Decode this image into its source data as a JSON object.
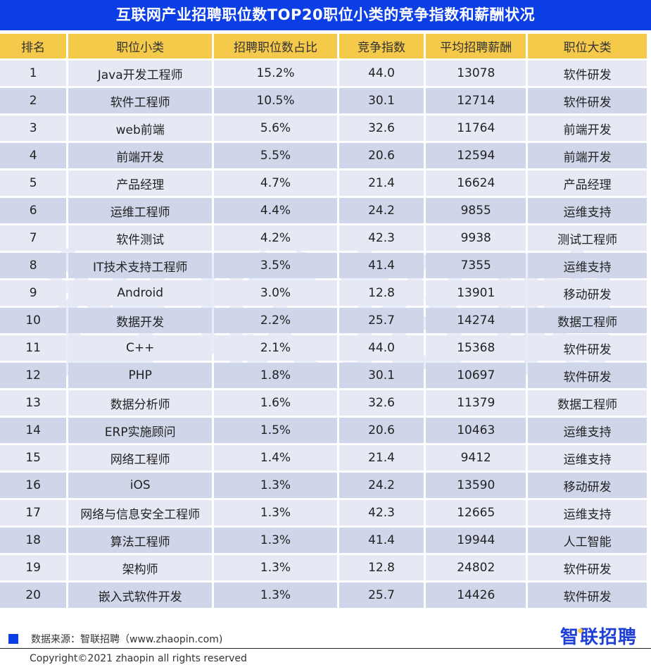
{
  "title": "互联网产业招聘职位数TOP20职位小类的竞争指数和薪酬状况",
  "watermark": "智联招聘",
  "colors": {
    "title_bg": "#0c3ee6",
    "header_bg": "#f5c94a",
    "row_light": "#e6e8f3",
    "row_dark": "#cfd6ea"
  },
  "table": {
    "headers": [
      "排名",
      "职位小类",
      "招聘职位数占比",
      "竞争指数",
      "平均招聘薪酬",
      "职位大类"
    ],
    "rows": [
      [
        "1",
        "Java开发工程师",
        "15.2%",
        "44.0",
        "13078",
        "软件研发"
      ],
      [
        "2",
        "软件工程师",
        "10.5%",
        "30.1",
        "12714",
        "软件研发"
      ],
      [
        "3",
        "web前端",
        "5.6%",
        "32.6",
        "11764",
        "前端开发"
      ],
      [
        "4",
        "前端开发",
        "5.5%",
        "20.6",
        "12594",
        "前端开发"
      ],
      [
        "5",
        "产品经理",
        "4.7%",
        "21.4",
        "16624",
        "产品经理"
      ],
      [
        "6",
        "运维工程师",
        "4.4%",
        "24.2",
        "9855",
        "运维支持"
      ],
      [
        "7",
        "软件测试",
        "4.2%",
        "42.3",
        "9938",
        "测试工程师"
      ],
      [
        "8",
        "IT技术支持工程师",
        "3.5%",
        "41.4",
        "7355",
        "运维支持"
      ],
      [
        "9",
        "Android",
        "3.0%",
        "12.8",
        "13901",
        "移动研发"
      ],
      [
        "10",
        "数据开发",
        "2.2%",
        "25.7",
        "14274",
        "数据工程师"
      ],
      [
        "11",
        "C++",
        "2.1%",
        "44.0",
        "15368",
        "软件研发"
      ],
      [
        "12",
        "PHP",
        "1.8%",
        "30.1",
        "10697",
        "软件研发"
      ],
      [
        "13",
        "数据分析师",
        "1.6%",
        "32.6",
        "11379",
        "数据工程师"
      ],
      [
        "14",
        "ERP实施顾问",
        "1.5%",
        "20.6",
        "10463",
        "运维支持"
      ],
      [
        "15",
        "网络工程师",
        "1.4%",
        "21.4",
        "9412",
        "运维支持"
      ],
      [
        "16",
        "iOS",
        "1.3%",
        "24.2",
        "13590",
        "移动研发"
      ],
      [
        "17",
        "网络与信息安全工程师",
        "1.3%",
        "42.3",
        "12665",
        "运维支持"
      ],
      [
        "18",
        "算法工程师",
        "1.3%",
        "41.4",
        "19944",
        "人工智能"
      ],
      [
        "19",
        "架构师",
        "1.3%",
        "12.8",
        "24802",
        "软件研发"
      ],
      [
        "20",
        "嵌入式软件开发",
        "1.3%",
        "25.7",
        "14426",
        "软件研发"
      ]
    ]
  },
  "footer": {
    "source": "数据来源：智联招聘（www.zhaopin.com)",
    "copyright": "Copyright©2021 zhaopin all rights reserved",
    "logo_text_a": "智",
    "logo_text_b": "联招聘"
  }
}
